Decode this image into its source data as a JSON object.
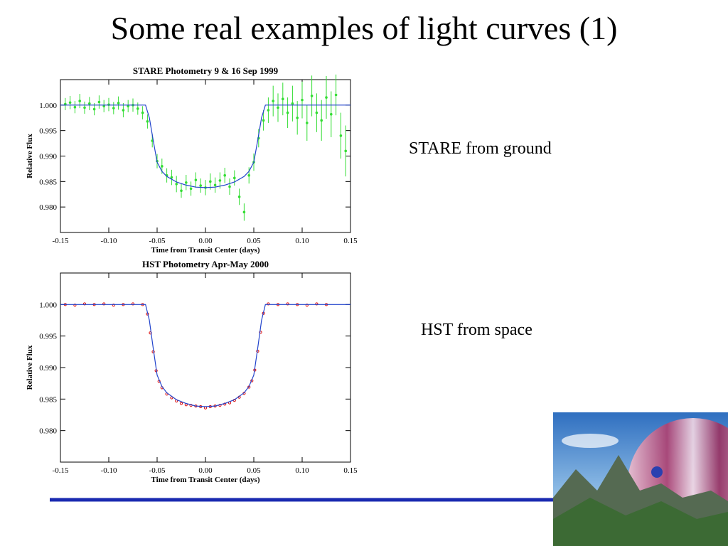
{
  "title": "Some real examples of light curves (1)",
  "captions": [
    "STARE from ground",
    "HST from space"
  ],
  "chart_data": [
    {
      "type": "scatter",
      "title": "STARE Photometry 9 & 16 Sep 1999",
      "xlabel": "Time from Transit Center (days)",
      "ylabel": "Relative Flux",
      "xlim": [
        -0.15,
        0.15
      ],
      "ylim": [
        0.975,
        1.005
      ],
      "xticks": [
        -0.15,
        {
          "value": -0.1,
          "label": "-0.10"
        },
        -0.05,
        {
          "value": 0,
          "label": "0.00"
        },
        0.05,
        {
          "value": 0.1,
          "label": "0.10"
        },
        0.15
      ],
      "yticks": [
        {
          "value": 0.98,
          "label": "0.980"
        },
        0.985,
        {
          "value": 0.99,
          "label": "0.990"
        },
        0.995,
        {
          "value": 1,
          "label": "1.000"
        }
      ],
      "series": [
        {
          "type": "errorbar",
          "color": "#33dd33",
          "x": [
            -0.145,
            -0.14,
            -0.135,
            -0.13,
            -0.125,
            -0.12,
            -0.115,
            -0.11,
            -0.105,
            -0.1,
            -0.095,
            -0.09,
            -0.085,
            -0.08,
            -0.075,
            -0.07,
            -0.065,
            -0.06,
            -0.055,
            -0.05,
            -0.045,
            -0.04,
            -0.035,
            -0.03,
            -0.025,
            -0.02,
            -0.015,
            -0.01,
            -0.005,
            0,
            0.005,
            0.01,
            0.015,
            0.02,
            0.025,
            0.03,
            0.035,
            0.04,
            0.045,
            0.05,
            0.055,
            0.06,
            0.065,
            0.07,
            0.075,
            0.08,
            0.085,
            0.09,
            0.095,
            0.1,
            0.105,
            0.11,
            0.115,
            0.12,
            0.125,
            0.13,
            0.135,
            0.14,
            0.145
          ],
          "values": [
            1.0002,
            1.0005,
            0.9996,
            1.0008,
            0.9995,
            1.0003,
            0.9992,
            1.0006,
            0.9998,
            1.0001,
            0.9994,
            1.0004,
            0.999,
            0.9998,
            1,
            0.9993,
            0.9985,
            0.9968,
            0.993,
            0.989,
            0.988,
            0.9862,
            0.9858,
            0.9845,
            0.9832,
            0.9848,
            0.9836,
            0.9853,
            0.9842,
            0.9838,
            0.985,
            0.9843,
            0.9852,
            0.9862,
            0.984,
            0.9857,
            0.982,
            0.979,
            0.9862,
            0.9888,
            0.9935,
            0.997,
            0.999,
            1.0008,
            0.9995,
            1.0012,
            0.9985,
            1.0003,
            0.9975,
            1.001,
            0.9965,
            1.0018,
            0.9985,
            0.997,
            1.0015,
            0.9982,
            1.002,
            0.994,
            0.991
          ],
          "errors": [
            0.0012,
            0.0013,
            0.0012,
            0.0014,
            0.0012,
            0.0013,
            0.0012,
            0.0013,
            0.0012,
            0.0013,
            0.0012,
            0.0013,
            0.0014,
            0.0012,
            0.0013,
            0.0012,
            0.0013,
            0.0014,
            0.0013,
            0.0014,
            0.0015,
            0.0014,
            0.0015,
            0.0016,
            0.0014,
            0.0015,
            0.0014,
            0.0015,
            0.0014,
            0.0015,
            0.0016,
            0.0015,
            0.0016,
            0.0015,
            0.0016,
            0.0015,
            0.0016,
            0.0017,
            0.0016,
            0.0017,
            0.0018,
            0.002,
            0.0025,
            0.003,
            0.0028,
            0.0032,
            0.003,
            0.0035,
            0.0033,
            0.0036,
            0.0035,
            0.004,
            0.0038,
            0.004,
            0.0042,
            0.0045,
            0.004,
            0.0045,
            0.005
          ]
        },
        {
          "type": "line",
          "color": "#2244cc",
          "x": [
            -0.15,
            -0.062,
            -0.058,
            -0.054,
            -0.05,
            -0.045,
            -0.04,
            -0.03,
            -0.02,
            -0.01,
            0,
            0.01,
            0.02,
            0.03,
            0.04,
            0.045,
            0.05,
            0.054,
            0.058,
            0.062,
            0.15
          ],
          "values": [
            1,
            1,
            0.9975,
            0.993,
            0.9888,
            0.987,
            0.986,
            0.9849,
            0.9843,
            0.9839,
            0.9838,
            0.9839,
            0.9843,
            0.9849,
            0.986,
            0.987,
            0.9888,
            0.993,
            0.9975,
            1,
            1
          ]
        }
      ]
    },
    {
      "type": "scatter",
      "title": "HST Photometry Apr-May 2000",
      "xlabel": "Time from Transit Center (days)",
      "ylabel": "Relative Flux",
      "xlim": [
        -0.15,
        0.15
      ],
      "ylim": [
        0.975,
        1.005
      ],
      "xticks": [
        -0.15,
        {
          "value": -0.1,
          "label": "-0.10"
        },
        -0.05,
        {
          "value": 0,
          "label": "0.00"
        },
        0.05,
        {
          "value": 0.1,
          "label": "0.10"
        },
        0.15
      ],
      "yticks": [
        {
          "value": 0.98,
          "label": "0.980"
        },
        0.985,
        {
          "value": 0.99,
          "label": "0.990"
        },
        0.995,
        {
          "value": 1,
          "label": "1.000"
        }
      ],
      "series": [
        {
          "type": "points",
          "color": "#dd1111",
          "x": [
            -0.145,
            -0.135,
            -0.125,
            -0.115,
            -0.105,
            -0.095,
            -0.085,
            -0.075,
            -0.065,
            -0.06,
            -0.057,
            -0.054,
            -0.051,
            -0.048,
            -0.045,
            -0.04,
            -0.035,
            -0.03,
            -0.025,
            -0.02,
            -0.015,
            -0.01,
            -0.005,
            0,
            0.005,
            0.01,
            0.015,
            0.02,
            0.025,
            0.03,
            0.035,
            0.04,
            0.045,
            0.048,
            0.051,
            0.054,
            0.057,
            0.06,
            0.065,
            0.075,
            0.085,
            0.095,
            0.105,
            0.115,
            0.125
          ],
          "values": [
            1,
            0.9999,
            1.0001,
            1,
            1.0001,
            0.9999,
            1,
            1.0001,
            1,
            0.9985,
            0.9955,
            0.9925,
            0.9895,
            0.9878,
            0.9868,
            0.9858,
            0.9852,
            0.9847,
            0.9843,
            0.9841,
            0.984,
            0.9839,
            0.9838,
            0.9836,
            0.9838,
            0.9839,
            0.984,
            0.9842,
            0.9844,
            0.9848,
            0.9853,
            0.9859,
            0.9869,
            0.9879,
            0.9896,
            0.9926,
            0.9956,
            0.9986,
            1.0001,
            1,
            1.0001,
            1,
            0.9999,
            1.0001,
            1
          ]
        },
        {
          "type": "line",
          "color": "#2244cc",
          "x": [
            -0.15,
            -0.062,
            -0.058,
            -0.054,
            -0.05,
            -0.045,
            -0.04,
            -0.03,
            -0.02,
            -0.01,
            0,
            0.01,
            0.02,
            0.03,
            0.04,
            0.045,
            0.05,
            0.054,
            0.058,
            0.062,
            0.15
          ],
          "values": [
            1,
            1,
            0.9975,
            0.993,
            0.9888,
            0.987,
            0.986,
            0.9849,
            0.9843,
            0.9839,
            0.9838,
            0.9839,
            0.9843,
            0.9849,
            0.986,
            0.987,
            0.9888,
            0.993,
            0.9975,
            1,
            1
          ]
        }
      ]
    }
  ]
}
